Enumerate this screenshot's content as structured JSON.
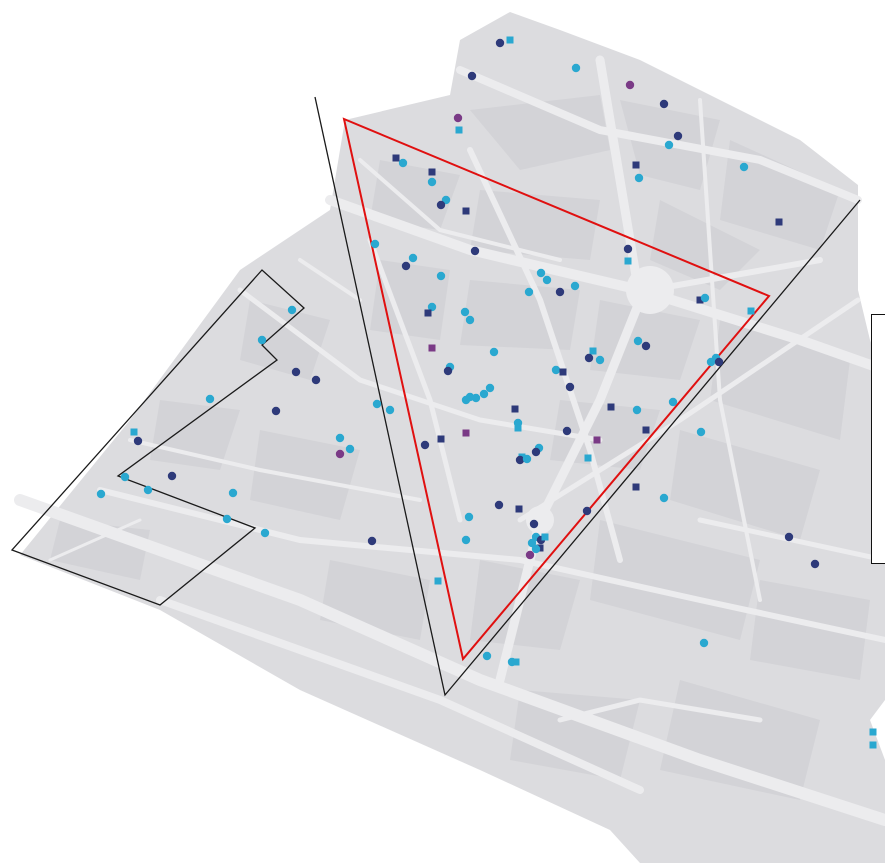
{
  "map": {
    "colors": {
      "land": "#dcdcdf",
      "block": "#d3d3d7",
      "street": "#ececee",
      "zone_outline": "#1a1a1a",
      "highlight_triangle": "#e01010",
      "marker_dark_blue": "#2e3a7a",
      "marker_cyan": "#2aa8d0",
      "marker_purple": "#7a3a86"
    },
    "marker_types": [
      "circle",
      "square"
    ],
    "overlays": [
      "black-zone-west",
      "black-divider-line",
      "red-triangle-zone"
    ]
  }
}
